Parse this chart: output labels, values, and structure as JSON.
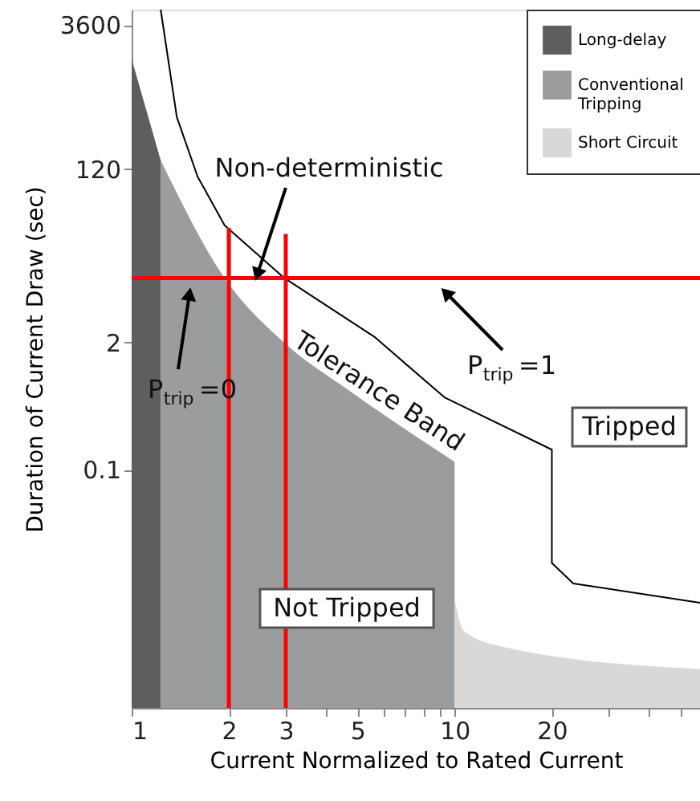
{
  "chart_data": {
    "type": "area",
    "xlabel": "Current Normalized to Rated Current",
    "ylabel": "Duration of Current Draw (sec)",
    "log": "xy",
    "grid": false,
    "legend": "top right",
    "xlim": [
      1,
      57.5
    ],
    "xticks": [
      1,
      2,
      3,
      {
        "value": 4,
        "label": null
      },
      5,
      {
        "value": 6,
        "label": null
      },
      {
        "value": 7,
        "label": null
      },
      {
        "value": 8,
        "label": null
      },
      {
        "value": 9,
        "label": null
      },
      10,
      20,
      {
        "value": 30,
        "label": null
      },
      {
        "value": 40,
        "label": null
      },
      {
        "value": 50,
        "label": null
      }
    ],
    "ylim": [
      0.00036,
      5200
    ],
    "yticks": [
      0.1,
      2,
      120,
      {
        "value": 3600,
        "label": "3600"
      }
    ],
    "series": [
      {
        "name": "Long-delay",
        "color": "#5d5e60",
        "x": [
          1,
          1.23
        ],
        "values": [
          1620,
          148
        ]
      },
      {
        "name": "Conventional Tripping",
        "color": "#9a9c9e",
        "x": [
          1.23,
          1.94,
          2.97,
          4.7,
          10
        ],
        "values": [
          148,
          9.2,
          2.0,
          0.65,
          0.12
        ]
      },
      {
        "name": "Short Circuit",
        "color": "#d9d8d6",
        "x": [
          10,
          10.7,
          14.4,
          57.5
        ],
        "values": [
          0.0046,
          0.0022,
          0.0015,
          0.0009
        ]
      },
      {
        "type": "line",
        "color": "#000000",
        "x": [
          1.23,
          1.38,
          1.6,
          1.94,
          2.97,
          5.64,
          9.3,
          20,
          20,
          23.3,
          57.5
        ],
        "values": [
          5200,
          412,
          101,
          32,
          9.2,
          2.3,
          0.55,
          0.16,
          0.011,
          0.0068,
          0.0043
        ]
      },
      {
        "type": "line",
        "color": "#ff0000",
        "x": [
          1,
          57.5
        ],
        "values": [
          9.2,
          9.2
        ]
      },
      {
        "type": "line",
        "color": "#ff0000",
        "x": [
          2,
          2
        ],
        "values": [
          30,
          0.00036
        ]
      },
      {
        "type": "line",
        "color": "#ff0000",
        "x": [
          3,
          3
        ],
        "values": [
          26,
          0.00036
        ]
      }
    ],
    "annotations": [
      {
        "text": "Non-deterministic",
        "x": 2.45,
        "y": 10
      },
      {
        "text": "P$_{trip}$=0",
        "x": 1.51,
        "y": 6.3
      },
      {
        "text": "P$_{trip}$=1",
        "x": 9.4,
        "y": 6.5
      },
      "Tolerance Band",
      "Tripped",
      "Not Tripped"
    ]
  }
}
